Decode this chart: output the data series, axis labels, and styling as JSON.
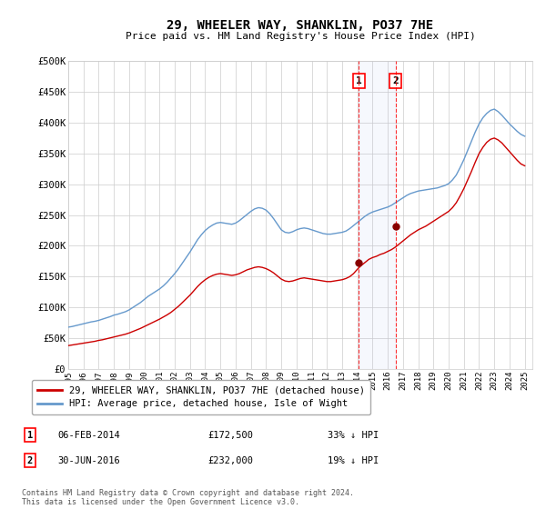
{
  "title": "29, WHEELER WAY, SHANKLIN, PO37 7HE",
  "subtitle": "Price paid vs. HM Land Registry's House Price Index (HPI)",
  "ylabel_ticks": [
    "£0",
    "£50K",
    "£100K",
    "£150K",
    "£200K",
    "£250K",
    "£300K",
    "£350K",
    "£400K",
    "£450K",
    "£500K"
  ],
  "ytick_values": [
    0,
    50000,
    100000,
    150000,
    200000,
    250000,
    300000,
    350000,
    400000,
    450000,
    500000
  ],
  "ylim": [
    0,
    500000
  ],
  "xlim_start": 1995.0,
  "xlim_end": 2025.5,
  "hpi_color": "#6699cc",
  "price_color": "#cc0000",
  "marker1_date": 2014.09,
  "marker2_date": 2016.5,
  "marker1_price": 172500,
  "marker2_price": 232000,
  "legend_label1": "29, WHEELER WAY, SHANKLIN, PO37 7HE (detached house)",
  "legend_label2": "HPI: Average price, detached house, Isle of Wight",
  "background_color": "#ffffff",
  "grid_color": "#cccccc",
  "hpi_years": [
    1995,
    1995.25,
    1995.5,
    1995.75,
    1996,
    1996.25,
    1996.5,
    1996.75,
    1997,
    1997.25,
    1997.5,
    1997.75,
    1998,
    1998.25,
    1998.5,
    1998.75,
    1999,
    1999.25,
    1999.5,
    1999.75,
    2000,
    2000.25,
    2000.5,
    2000.75,
    2001,
    2001.25,
    2001.5,
    2001.75,
    2002,
    2002.25,
    2002.5,
    2002.75,
    2003,
    2003.25,
    2003.5,
    2003.75,
    2004,
    2004.25,
    2004.5,
    2004.75,
    2005,
    2005.25,
    2005.5,
    2005.75,
    2006,
    2006.25,
    2006.5,
    2006.75,
    2007,
    2007.25,
    2007.5,
    2007.75,
    2008,
    2008.25,
    2008.5,
    2008.75,
    2009,
    2009.25,
    2009.5,
    2009.75,
    2010,
    2010.25,
    2010.5,
    2010.75,
    2011,
    2011.25,
    2011.5,
    2011.75,
    2012,
    2012.25,
    2012.5,
    2012.75,
    2013,
    2013.25,
    2013.5,
    2013.75,
    2014,
    2014.25,
    2014.5,
    2014.75,
    2015,
    2015.25,
    2015.5,
    2015.75,
    2016,
    2016.25,
    2016.5,
    2016.75,
    2017,
    2017.25,
    2017.5,
    2017.75,
    2018,
    2018.25,
    2018.5,
    2018.75,
    2019,
    2019.25,
    2019.5,
    2019.75,
    2020,
    2020.25,
    2020.5,
    2020.75,
    2021,
    2021.25,
    2021.5,
    2021.75,
    2022,
    2022.25,
    2022.5,
    2022.75,
    2023,
    2023.25,
    2023.5,
    2023.75,
    2024,
    2024.25,
    2024.5,
    2024.75,
    2025
  ],
  "hpi_values": [
    68000,
    69000,
    70500,
    72000,
    73500,
    75000,
    76500,
    77500,
    79000,
    81000,
    83000,
    85000,
    87500,
    89000,
    91000,
    93000,
    96000,
    100000,
    104000,
    108000,
    113000,
    118000,
    122000,
    126000,
    130000,
    135000,
    141000,
    148000,
    155000,
    163000,
    172000,
    181000,
    190000,
    200000,
    210000,
    218000,
    225000,
    230000,
    234000,
    237000,
    238000,
    237000,
    236000,
    235000,
    237000,
    241000,
    246000,
    251000,
    256000,
    260000,
    262000,
    261000,
    258000,
    252000,
    244000,
    235000,
    226000,
    222000,
    221000,
    223000,
    226000,
    228000,
    229000,
    228000,
    226000,
    224000,
    222000,
    220000,
    219000,
    219000,
    220000,
    221000,
    222000,
    224000,
    228000,
    233000,
    238000,
    243000,
    248000,
    252000,
    255000,
    257000,
    259000,
    261000,
    263000,
    266000,
    270000,
    274000,
    278000,
    282000,
    285000,
    287000,
    289000,
    290000,
    291000,
    292000,
    293000,
    294000,
    296000,
    298000,
    301000,
    307000,
    315000,
    327000,
    340000,
    355000,
    370000,
    385000,
    398000,
    408000,
    415000,
    420000,
    422000,
    418000,
    412000,
    405000,
    398000,
    392000,
    386000,
    381000,
    378000
  ],
  "price_years": [
    1995,
    1995.25,
    1995.5,
    1995.75,
    1996,
    1996.25,
    1996.5,
    1996.75,
    1997,
    1997.25,
    1997.5,
    1997.75,
    1998,
    1998.25,
    1998.5,
    1998.75,
    1999,
    1999.25,
    1999.5,
    1999.75,
    2000,
    2000.25,
    2000.5,
    2000.75,
    2001,
    2001.25,
    2001.5,
    2001.75,
    2002,
    2002.25,
    2002.5,
    2002.75,
    2003,
    2003.25,
    2003.5,
    2003.75,
    2004,
    2004.25,
    2004.5,
    2004.75,
    2005,
    2005.25,
    2005.5,
    2005.75,
    2006,
    2006.25,
    2006.5,
    2006.75,
    2007,
    2007.25,
    2007.5,
    2007.75,
    2008,
    2008.25,
    2008.5,
    2008.75,
    2009,
    2009.25,
    2009.5,
    2009.75,
    2010,
    2010.25,
    2010.5,
    2010.75,
    2011,
    2011.25,
    2011.5,
    2011.75,
    2012,
    2012.25,
    2012.5,
    2012.75,
    2013,
    2013.25,
    2013.5,
    2013.75,
    2014,
    2014.25,
    2014.5,
    2014.75,
    2015,
    2015.25,
    2015.5,
    2015.75,
    2016,
    2016.25,
    2016.5,
    2016.75,
    2017,
    2017.25,
    2017.5,
    2017.75,
    2018,
    2018.25,
    2018.5,
    2018.75,
    2019,
    2019.25,
    2019.5,
    2019.75,
    2020,
    2020.25,
    2020.5,
    2020.75,
    2021,
    2021.25,
    2021.5,
    2021.75,
    2022,
    2022.25,
    2022.5,
    2022.75,
    2023,
    2023.25,
    2023.5,
    2023.75,
    2024,
    2024.25,
    2024.5,
    2024.75,
    2025
  ],
  "price_values": [
    38000,
    39000,
    40000,
    41000,
    42000,
    43000,
    44000,
    45000,
    46500,
    47500,
    49000,
    50500,
    52000,
    53500,
    55000,
    56500,
    58500,
    61000,
    63500,
    66000,
    69000,
    72000,
    75000,
    78000,
    81000,
    84500,
    88000,
    92000,
    97000,
    102000,
    108000,
    114000,
    120000,
    127000,
    134000,
    140000,
    145000,
    149000,
    152000,
    154000,
    155000,
    154000,
    153000,
    152000,
    153000,
    155000,
    158000,
    161000,
    163000,
    165000,
    166000,
    165000,
    163000,
    160000,
    156000,
    151000,
    146000,
    143000,
    142000,
    143000,
    145000,
    147000,
    148000,
    147000,
    146000,
    145000,
    144000,
    143000,
    142000,
    142000,
    143000,
    144000,
    145000,
    147000,
    150000,
    155000,
    162000,
    168000,
    173000,
    178000,
    181000,
    183000,
    186000,
    188000,
    191000,
    194000,
    198000,
    203000,
    208000,
    213000,
    218000,
    222000,
    226000,
    229000,
    232000,
    236000,
    240000,
    244000,
    248000,
    252000,
    256000,
    262000,
    270000,
    281000,
    293000,
    307000,
    321000,
    336000,
    350000,
    360000,
    368000,
    373000,
    375000,
    372000,
    367000,
    360000,
    353000,
    346000,
    339000,
    333000,
    330000
  ]
}
